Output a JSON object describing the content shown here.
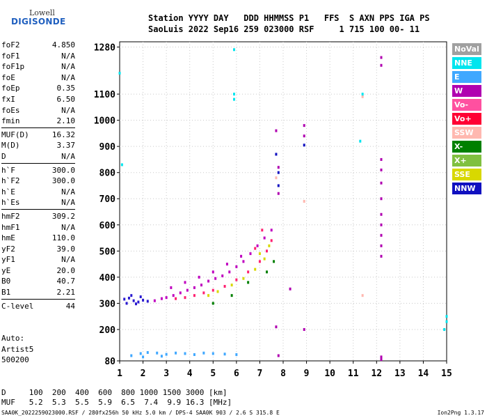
{
  "logo": {
    "top": "Lowell",
    "bottom": "DIGISONDE"
  },
  "header": {
    "line1": "Station YYYY DAY   DDD HHMMSS P1   FFS  S AXN PPS IGA PS",
    "line2": "SaoLuis 2022 Sep16 259 023000 RSF     1 715 100 00- 11"
  },
  "params": [
    {
      "label": "foF2",
      "value": "4.850"
    },
    {
      "label": "foF1",
      "value": "N/A"
    },
    {
      "label": "foF1p",
      "value": "N/A"
    },
    {
      "label": "foE",
      "value": "N/A"
    },
    {
      "label": "foEp",
      "value": "0.35"
    },
    {
      "label": "fxI",
      "value": "6.50"
    },
    {
      "label": "foEs",
      "value": "N/A"
    },
    {
      "label": "fmin",
      "value": "2.10"
    },
    {
      "label": "MUF(D)",
      "value": "16.32"
    },
    {
      "label": "M(D)",
      "value": "3.37"
    },
    {
      "label": "D",
      "value": "N/A"
    },
    {
      "label": "h`F",
      "value": "300.0"
    },
    {
      "label": "h`F2",
      "value": "300.0"
    },
    {
      "label": "h`E",
      "value": "N/A"
    },
    {
      "label": "h`Es",
      "value": "N/A"
    },
    {
      "label": "hmF2",
      "value": "309.2"
    },
    {
      "label": "hmF1",
      "value": "N/A"
    },
    {
      "label": "hmE",
      "value": "110.0"
    },
    {
      "label": "yF2",
      "value": "39.0"
    },
    {
      "label": "yF1",
      "value": "N/A"
    },
    {
      "label": "yE",
      "value": "20.0"
    },
    {
      "label": "B0",
      "value": "40.7"
    },
    {
      "label": "B1",
      "value": "2.21"
    },
    {
      "label": "C-level",
      "value": "44"
    }
  ],
  "auto": [
    "Auto:",
    "Artist5",
    "500200"
  ],
  "muf_table": {
    "d_line": "D     100  200  400  600  800 1000 1500 3000 [km]",
    "muf_line": "MUF   5.2  5.3  5.5  5.9  6.5  7.4  9.9 16.3 [MHz]"
  },
  "footer": "SAA0K_2022259023000.RSF / 280fx256h 50 kHz 5.0 km / DPS-4 SAA0K 903 / 2.6 S 315.8 E",
  "footer_right": "Ion2Png 1.3.17",
  "legend": [
    {
      "label": "NoVal",
      "color": "#a0a0a0"
    },
    {
      "label": "NNE",
      "color": "#00e5ee"
    },
    {
      "label": "E",
      "color": "#40a8ff"
    },
    {
      "label": "W",
      "color": "#b000b0"
    },
    {
      "label": "Vo-",
      "color": "#ff50a0"
    },
    {
      "label": "Vo+",
      "color": "#ff0033"
    },
    {
      "label": "SSW",
      "color": "#ffb8b0"
    },
    {
      "label": "X-",
      "color": "#008000"
    },
    {
      "label": "X+",
      "color": "#80c040"
    },
    {
      "label": "SSE",
      "color": "#d8d800"
    },
    {
      "label": "NNW",
      "color": "#1010c0"
    }
  ],
  "chart_data": {
    "type": "scatter",
    "title": "",
    "xlabel": "",
    "ylabel": "",
    "xlim": [
      1,
      15
    ],
    "ylim": [
      80,
      1300
    ],
    "xticks": [
      1,
      2,
      3,
      4,
      5,
      6,
      7,
      8,
      9,
      10,
      11,
      12,
      13,
      14,
      15
    ],
    "yticks": [
      80,
      200,
      300,
      400,
      500,
      600,
      700,
      800,
      900,
      1000,
      1100,
      1280
    ],
    "grid": true,
    "series": [
      {
        "color": "#2a1ad0",
        "points": [
          [
            1.2,
            316
          ],
          [
            1.4,
            320
          ],
          [
            1.6,
            310
          ],
          [
            1.8,
            305
          ],
          [
            2.0,
            312
          ],
          [
            2.2,
            308
          ],
          [
            1.5,
            330
          ],
          [
            1.9,
            325
          ],
          [
            1.3,
            300
          ],
          [
            1.7,
            298
          ]
        ]
      },
      {
        "color": "#c000c0",
        "points": [
          [
            2.5,
            310
          ],
          [
            2.8,
            318
          ],
          [
            3.0,
            322
          ],
          [
            3.3,
            330
          ],
          [
            3.6,
            340
          ],
          [
            3.9,
            350
          ],
          [
            4.2,
            360
          ],
          [
            4.5,
            370
          ],
          [
            4.8,
            385
          ],
          [
            5.1,
            395
          ],
          [
            5.4,
            405
          ],
          [
            5.7,
            420
          ],
          [
            6.0,
            440
          ],
          [
            6.3,
            460
          ],
          [
            6.6,
            490
          ],
          [
            6.9,
            520
          ],
          [
            7.2,
            550
          ],
          [
            7.5,
            580
          ],
          [
            3.2,
            360
          ],
          [
            3.8,
            380
          ],
          [
            4.4,
            400
          ],
          [
            5.0,
            420
          ],
          [
            5.6,
            450
          ],
          [
            6.2,
            480
          ]
        ]
      },
      {
        "color": "#ff2070",
        "points": [
          [
            3.4,
            318
          ],
          [
            3.8,
            322
          ],
          [
            4.2,
            330
          ],
          [
            4.6,
            340
          ],
          [
            5.0,
            350
          ],
          [
            5.5,
            365
          ],
          [
            6.0,
            390
          ],
          [
            6.5,
            420
          ],
          [
            7.0,
            460
          ],
          [
            7.3,
            500
          ],
          [
            7.5,
            540
          ],
          [
            6.8,
            510
          ],
          [
            7.1,
            580
          ]
        ]
      },
      {
        "color": "#d8d800",
        "points": [
          [
            4.8,
            330
          ],
          [
            5.2,
            345
          ],
          [
            5.8,
            370
          ],
          [
            6.3,
            395
          ],
          [
            6.8,
            430
          ],
          [
            7.2,
            470
          ],
          [
            7.4,
            520
          ],
          [
            7.0,
            490
          ]
        ]
      },
      {
        "color": "#40a8ff",
        "points": [
          [
            1.5,
            100
          ],
          [
            1.9,
            108
          ],
          [
            2.2,
            112
          ],
          [
            2.6,
            110
          ],
          [
            3.0,
            105
          ],
          [
            3.4,
            110
          ],
          [
            3.8,
            108
          ],
          [
            4.2,
            104
          ],
          [
            4.6,
            110
          ],
          [
            5.0,
            108
          ],
          [
            5.5,
            106
          ],
          [
            6.0,
            104
          ],
          [
            2.0,
            95
          ],
          [
            2.8,
            98
          ]
        ]
      },
      {
        "color": "#b000b0",
        "points": [
          [
            12.2,
            1240
          ],
          [
            12.2,
            1210
          ],
          [
            12.2,
            850
          ],
          [
            12.2,
            810
          ],
          [
            12.2,
            760
          ],
          [
            12.2,
            700
          ],
          [
            12.2,
            640
          ],
          [
            12.2,
            600
          ],
          [
            12.2,
            560
          ],
          [
            12.2,
            520
          ],
          [
            12.2,
            480
          ],
          [
            12.2,
            95
          ],
          [
            12.2,
            85
          ],
          [
            7.8,
            720
          ],
          [
            7.8,
            820
          ],
          [
            8.9,
            940
          ],
          [
            8.9,
            980
          ],
          [
            7.7,
            960
          ],
          [
            8.3,
            355
          ],
          [
            7.7,
            210
          ],
          [
            8.9,
            200
          ],
          [
            7.8,
            100
          ]
        ]
      },
      {
        "color": "#1010c0",
        "points": [
          [
            7.8,
            750
          ],
          [
            7.8,
            800
          ],
          [
            7.7,
            870
          ],
          [
            8.9,
            905
          ]
        ]
      },
      {
        "color": "#ffb8b0",
        "points": [
          [
            11.4,
            1090
          ],
          [
            11.4,
            330
          ],
          [
            8.9,
            690
          ],
          [
            7.7,
            780
          ]
        ]
      },
      {
        "color": "#00e5ee",
        "points": [
          [
            5.9,
            1270
          ],
          [
            5.9,
            1100
          ],
          [
            5.9,
            1080
          ],
          [
            11.4,
            1100
          ],
          [
            15.0,
            250
          ],
          [
            15.0,
            230
          ],
          [
            14.9,
            200
          ],
          [
            1.0,
            1180
          ],
          [
            11.3,
            920
          ],
          [
            1.1,
            830
          ]
        ]
      },
      {
        "color": "#008000",
        "points": [
          [
            5.0,
            300
          ],
          [
            5.8,
            330
          ],
          [
            6.5,
            380
          ],
          [
            7.3,
            420
          ],
          [
            7.6,
            460
          ]
        ]
      }
    ]
  }
}
